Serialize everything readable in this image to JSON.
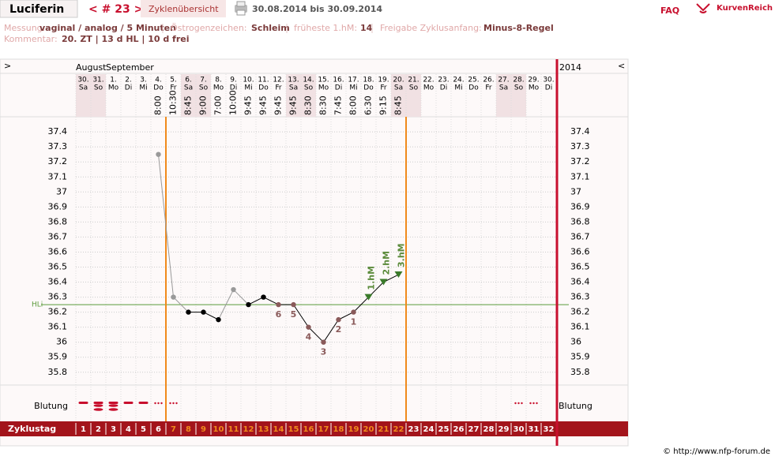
{
  "header": {
    "title": "Luciferin",
    "cycle": "< # 23 >",
    "overview": "Zyklenübersicht",
    "range": "30.08.2014 bis 30.09.2014",
    "faq": "FAQ",
    "brand": "KurvenReich"
  },
  "info": {
    "items": [
      {
        "label": "Messung:",
        "value": "vaginal / analog / 5 Minuten"
      },
      {
        "label": "Östrogenzeichen:",
        "value": "Schleim"
      },
      {
        "label": "früheste 1.hM:",
        "value": "14"
      },
      {
        "label": "Freigabe Zyklusanfang:",
        "value": "Minus-8-Regel"
      }
    ],
    "comment_label": "Kommentar:",
    "comment": "20. ZT | 13 d HL | 10 d frei"
  },
  "chart_data": {
    "type": "line",
    "nav_left": ">",
    "nav_right": "<",
    "months": [
      "August",
      "September"
    ],
    "year": "2014",
    "categories": [
      "30.",
      "31.",
      "1.",
      "2.",
      "3.",
      "4.",
      "5.",
      "6.",
      "7.",
      "8.",
      "9.",
      "10.",
      "11.",
      "12.",
      "13.",
      "14.",
      "15.",
      "16.",
      "17.",
      "18.",
      "19.",
      "20.",
      "21.",
      "22.",
      "23.",
      "24.",
      "25.",
      "26.",
      "27.",
      "28.",
      "29.",
      "30."
    ],
    "weekdays": [
      "Sa",
      "So",
      "Mo",
      "Di",
      "Mi",
      "Do",
      "Fr",
      "Sa",
      "So",
      "Mo",
      "Di",
      "Mi",
      "Do",
      "Fr",
      "Sa",
      "So",
      "Mo",
      "Di",
      "Mi",
      "Do",
      "Fr",
      "Sa",
      "So",
      "Mo",
      "Di",
      "Mi",
      "Do",
      "Fr",
      "Sa",
      "So",
      "Mo",
      "Di"
    ],
    "times": [
      null,
      null,
      null,
      null,
      null,
      "8:00",
      "10:30",
      "8:45",
      "9:00",
      "7:00",
      "10:00",
      "9:45",
      "9:45",
      "9:45",
      "9:45",
      "8:30",
      "8:30",
      "7:45",
      "8:00",
      "6:30",
      "9:15",
      "8:45",
      null,
      null,
      null,
      null,
      null,
      null,
      null,
      null,
      null,
      null
    ],
    "values": [
      null,
      null,
      null,
      null,
      null,
      37.25,
      36.3,
      36.2,
      36.2,
      36.15,
      36.35,
      36.25,
      36.3,
      36.25,
      36.25,
      36.1,
      36.0,
      36.15,
      36.2,
      36.3,
      36.4,
      36.45,
      null,
      null,
      null,
      null,
      null,
      null,
      null,
      null,
      null,
      null
    ],
    "point_colors": [
      null,
      null,
      null,
      null,
      null,
      "#999999",
      "#999999",
      "#000000",
      "#000000",
      "#000000",
      "#999999",
      "#000000",
      "#000000",
      "#8a5a5a",
      "#8a5a5a",
      "#8a5a5a",
      "#8a5a5a",
      "#8a5a5a",
      "#8a5a5a",
      "#3a7a2a",
      "#3a7a2a",
      "#3a7a2a",
      null,
      null,
      null,
      null,
      null,
      null,
      null,
      null,
      null,
      null
    ],
    "count_labels": [
      null,
      null,
      null,
      null,
      null,
      null,
      null,
      null,
      null,
      null,
      null,
      null,
      null,
      6,
      5,
      4,
      3,
      2,
      1,
      null,
      null,
      null,
      null,
      null,
      null,
      null,
      null,
      null,
      null,
      null,
      null,
      null
    ],
    "hm_labels": [
      null,
      null,
      null,
      null,
      null,
      null,
      null,
      null,
      null,
      null,
      null,
      null,
      null,
      null,
      null,
      null,
      null,
      null,
      null,
      "1.hM",
      "2.hM",
      "3.hM",
      null,
      null,
      null,
      null,
      null,
      null,
      null,
      null,
      null,
      null
    ],
    "ylim": [
      35.72,
      37.49
    ],
    "yticks": [
      35.8,
      35.9,
      36,
      36.1,
      36.2,
      36.3,
      36.4,
      36.5,
      36.6,
      36.7,
      36.8,
      36.9,
      37,
      37.1,
      37.2,
      37.3,
      37.4
    ],
    "reference_line": {
      "value": 36.25,
      "label": "HLi",
      "color": "#5a9a3a"
    },
    "grid": true,
    "bleeding_label": "Blutung",
    "bleeding": [
      2,
      3,
      3,
      2,
      2,
      1,
      1,
      null,
      null,
      null,
      null,
      null,
      null,
      null,
      null,
      null,
      null,
      null,
      null,
      null,
      null,
      null,
      null,
      null,
      null,
      null,
      null,
      null,
      null,
      1,
      1,
      null
    ],
    "cycle_day_label": "Zyklustag",
    "cycle_days": [
      1,
      2,
      3,
      4,
      5,
      6,
      7,
      8,
      9,
      10,
      11,
      12,
      13,
      14,
      15,
      16,
      17,
      18,
      19,
      20,
      21,
      22,
      23,
      24,
      25,
      26,
      27,
      28,
      29,
      30,
      31,
      32
    ],
    "active_range": [
      7,
      22
    ],
    "active_color": "#f08a1c"
  },
  "footer": "© http://www.nfp-forum.de"
}
